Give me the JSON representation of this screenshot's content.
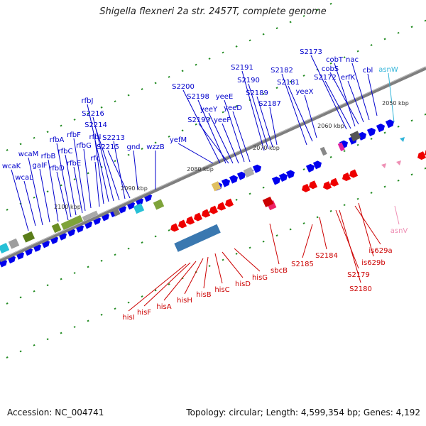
{
  "title": "Shigella flexneri 2a str. 2457T, complete genome",
  "accession": "Accession: NC_004741",
  "stats": "Topology: circular; Length: 4,599,354 bp; Genes: 4,192",
  "colors": {
    "gene": "#0000ee",
    "top_label": "#0000cc",
    "bottom_label": "#cc0000",
    "trna": "#33b5d9",
    "rrna_like": "#ee8fb4",
    "backbone": "#7f7f7f",
    "tick": "#228b22"
  },
  "kbp_labels": [
    "2050 kbp",
    "2060 kbp",
    "2070 kbp",
    "2080 kbp",
    "2090 kbp",
    "2100 kbp"
  ],
  "top_labels": [
    "wcaK",
    "wcaL",
    "wcaM",
    "galF",
    "rfbB",
    "rfbD",
    "rfbA",
    "rfbC",
    "rfbE",
    "rfbF",
    "rfbG",
    "rfc",
    "rfbI",
    "rfbJ",
    "S2216",
    "S2214",
    "S2213",
    "S2215",
    "gnd",
    "wzzB",
    "yefM",
    "S2200",
    "S2198",
    "S2199",
    "yeeY",
    "yeeF",
    "yeeE",
    "yeeD",
    "S2191",
    "S2190",
    "S2189",
    "S2187",
    "S2182",
    "S2181",
    "yeeX",
    "S2173",
    "S2172",
    "cobT",
    "cobS",
    "erfK",
    "nac",
    "cbl",
    "asnW"
  ],
  "bottom_labels": [
    "hisI",
    "hisF",
    "hisA",
    "hisH",
    "hisB",
    "hisC",
    "hisD",
    "hisG",
    "sbcB",
    "S2185",
    "S2184",
    "S2179",
    "S2180",
    "is629a",
    "is629b",
    "asnV"
  ]
}
